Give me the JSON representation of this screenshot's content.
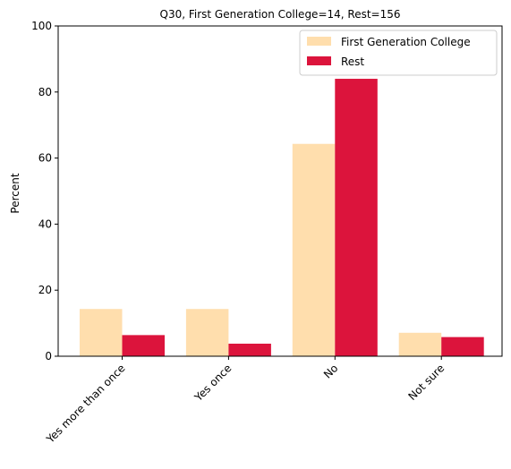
{
  "chart_data": {
    "type": "bar",
    "title": "Q30, First Generation College=14, Rest=156",
    "xlabel": "",
    "ylabel": "Percent",
    "ylim": [
      0,
      100
    ],
    "yticks": [
      0,
      20,
      40,
      60,
      80,
      100
    ],
    "categories": [
      "Yes more than once",
      "Yes once",
      "No",
      "Not sure"
    ],
    "series": [
      {
        "name": "First Generation College",
        "color": "#ffdead",
        "values": [
          14.3,
          14.3,
          64.3,
          7.1
        ]
      },
      {
        "name": "Rest",
        "color": "#dc143c",
        "values": [
          6.4,
          3.8,
          84.0,
          5.8
        ]
      }
    ],
    "legend": "top-right",
    "grid": false
  }
}
